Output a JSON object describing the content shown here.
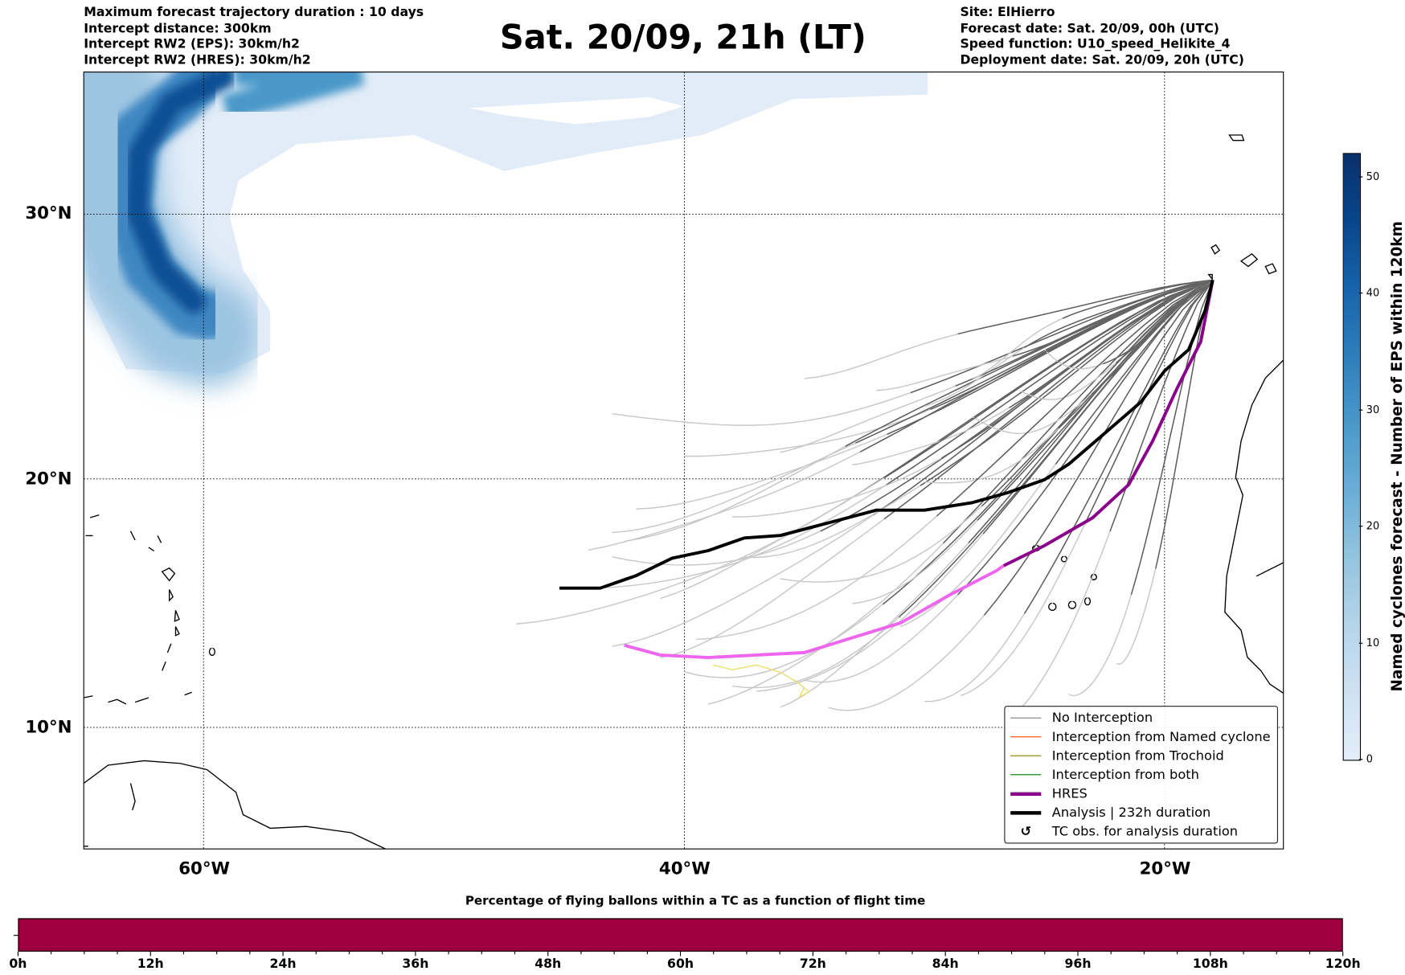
{
  "header": {
    "left": [
      "Maximum forecast trajectory duration : 10 days",
      "Intercept distance: 300km",
      "Intercept RW2 (EPS):  30km/h2",
      "Intercept RW2 (HRES): 30km/h2"
    ],
    "title": "Sat. 20/09, 21h (LT)",
    "right": [
      "Site: ElHierro",
      "Forecast date: Sat. 20/09, 00h (UTC)",
      "Speed function: U10_speed_Helikite_4",
      "Deployment date: Sat. 20/09, 20h (UTC)"
    ]
  },
  "chart_data": {
    "type": "map",
    "extent": {
      "lon": [
        -65,
        -15
      ],
      "lat": [
        5,
        35
      ]
    },
    "lon_ticks": [
      {
        "v": -60,
        "label": "60°W"
      },
      {
        "v": -40,
        "label": "40°W"
      },
      {
        "v": -20,
        "label": "20°W"
      }
    ],
    "lat_ticks": [
      {
        "v": 30,
        "label": "30°N"
      },
      {
        "v": 20,
        "label": "20°N"
      },
      {
        "v": 10,
        "label": "10°N"
      }
    ],
    "origin": [
      -18,
      27.6
    ],
    "ensemble_endpoints": [
      [
        -43,
        22.5
      ],
      [
        -40,
        21
      ],
      [
        -42,
        19
      ],
      [
        -43,
        18
      ],
      [
        -42.5,
        17.5
      ],
      [
        -43,
        16.8
      ],
      [
        -45,
        15.6
      ],
      [
        -47,
        14.3
      ],
      [
        -43,
        13.5
      ],
      [
        -41,
        13
      ],
      [
        -40,
        12.3
      ],
      [
        -38,
        11.6
      ],
      [
        -37,
        11.4
      ],
      [
        -39,
        11
      ],
      [
        -36,
        11
      ],
      [
        -34,
        11
      ],
      [
        -35,
        12
      ],
      [
        -30,
        11
      ],
      [
        -28.5,
        11.2
      ],
      [
        -26,
        10.8
      ],
      [
        -24,
        11.5
      ],
      [
        -22,
        12.8
      ],
      [
        -37.5,
        17
      ],
      [
        -33,
        15
      ],
      [
        -31,
        14
      ],
      [
        -36,
        16
      ],
      [
        -38,
        18.6
      ],
      [
        -32,
        23.6
      ],
      [
        -35,
        24
      ],
      [
        -30,
        22.8
      ],
      [
        -28,
        22.3
      ],
      [
        -30,
        19.8
      ],
      [
        -33,
        20.6
      ],
      [
        -36,
        21.2
      ],
      [
        -28,
        24
      ],
      [
        -25,
        25
      ],
      [
        -26,
        23.3
      ],
      [
        -39.5,
        13.5
      ],
      [
        -44,
        17.2
      ],
      [
        -41,
        15.4
      ]
    ],
    "no_intercept_color": "#c8c8c8",
    "near_color": "#5c5c5c",
    "analysis_track": [
      [
        -18,
        27.6
      ],
      [
        -18.3,
        26.5
      ],
      [
        -19,
        25
      ],
      [
        -20,
        24.2
      ],
      [
        -21,
        23
      ],
      [
        -22.5,
        21.8
      ],
      [
        -24,
        20.6
      ],
      [
        -25,
        20
      ],
      [
        -26.5,
        19.5
      ],
      [
        -28,
        19.1
      ],
      [
        -30,
        18.8
      ],
      [
        -32,
        18.8
      ],
      [
        -34,
        18.3
      ],
      [
        -36,
        17.8
      ],
      [
        -37.5,
        17.7
      ],
      [
        -39,
        17.2
      ],
      [
        -40.5,
        16.9
      ],
      [
        -42,
        16.2
      ],
      [
        -43.5,
        15.7
      ],
      [
        -45.2,
        15.7
      ]
    ],
    "hres_track": [
      [
        -18,
        27.6
      ],
      [
        -18.5,
        25.3
      ],
      [
        -19.5,
        23.5
      ],
      [
        -20.5,
        21.5
      ],
      [
        -21.5,
        19.8
      ],
      [
        -23,
        18.5
      ],
      [
        -25,
        17.4
      ],
      [
        -26.7,
        16.6
      ],
      [
        -27,
        16.4
      ],
      [
        -29,
        15.4
      ],
      [
        -31,
        14.3
      ],
      [
        -33,
        13.7
      ],
      [
        -35,
        13.1
      ],
      [
        -37,
        13.0
      ],
      [
        -39,
        12.9
      ],
      [
        -41,
        13.0
      ],
      [
        -42.5,
        13.4
      ]
    ],
    "hres_color": "#8b008b",
    "hres_late_color": "#ee66ee",
    "trochoid_track": [
      [
        -38.8,
        12.6
      ],
      [
        -38,
        12.4
      ],
      [
        -37,
        12.6
      ],
      [
        -36,
        12.3
      ],
      [
        -35.3,
        11.9
      ],
      [
        -34.8,
        11.5
      ],
      [
        -35.2,
        11.3
      ],
      [
        -35,
        11.7
      ]
    ],
    "density_track": [
      {
        "pts": [
          [
            -62,
            35
          ],
          [
            -64,
            32
          ],
          [
            -63.5,
            29
          ],
          [
            -61.5,
            27
          ],
          [
            -60,
            26
          ]
        ],
        "level": 45
      },
      {
        "pts": [
          [
            -58,
            35
          ],
          [
            -52,
            35
          ],
          [
            -47,
            35
          ]
        ],
        "level": 12
      }
    ],
    "colorbar": {
      "label": "Named cyclones forecast - Number of EPS within 120km",
      "ticks": [
        0,
        10,
        20,
        30,
        40,
        50
      ],
      "range": [
        0,
        52
      ]
    }
  },
  "legend": [
    {
      "label": "No Interception",
      "color": "#808080",
      "kind": "thin"
    },
    {
      "label": "Interception from Named cyclone",
      "color": "#ff4500",
      "kind": "thin"
    },
    {
      "label": "Interception from Trochoid",
      "color": "#808000",
      "kind": "thin"
    },
    {
      "label": "Interception from both",
      "color": "#008000",
      "kind": "thin"
    },
    {
      "label": "HRES",
      "color": "#8b008b",
      "kind": "thick"
    },
    {
      "label": "Analysis | 232h duration",
      "color": "#000000",
      "kind": "thick"
    },
    {
      "label": "TC obs. for analysis duration",
      "color": "#000000",
      "kind": "icon"
    }
  ],
  "bottom": {
    "title": "Percentage of flying ballons within a TC as a function of flight time",
    "color": "#9e003f",
    "ticks": [
      "0h",
      "12h",
      "24h",
      "36h",
      "48h",
      "60h",
      "72h",
      "84h",
      "96h",
      "108h",
      "120h"
    ]
  }
}
